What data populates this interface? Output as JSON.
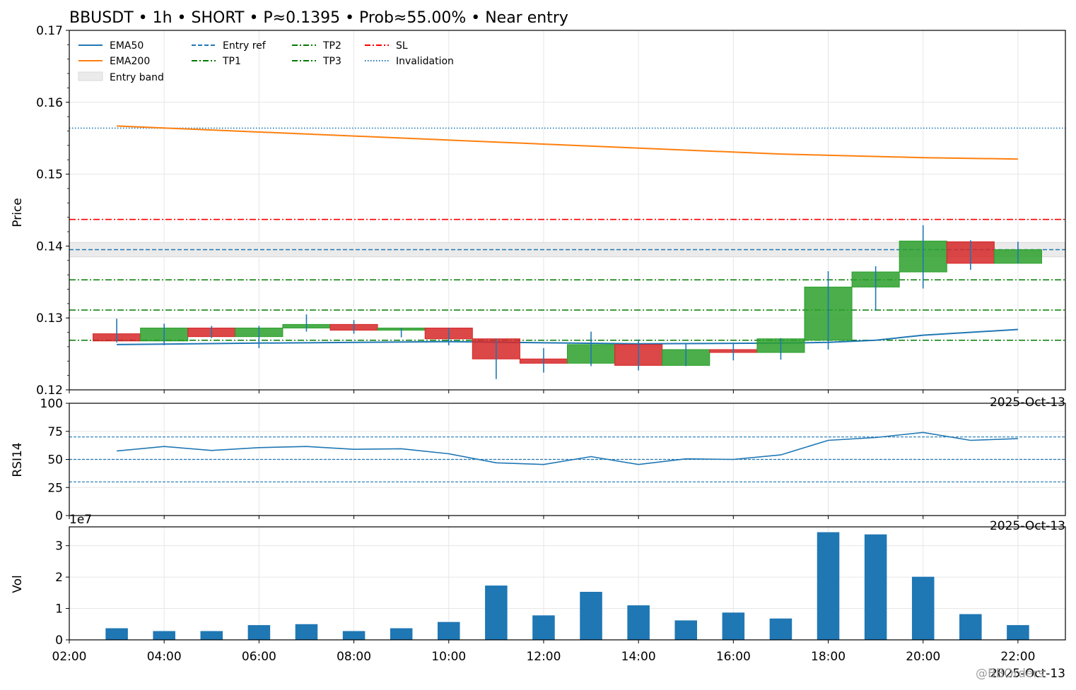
{
  "chart_data": {
    "title": "BBUSDT • 1h • SHORT • P≈0.1395 • Prob≈55.00% • Near entry",
    "type": "candlestick",
    "x_ticks": [
      "02:00",
      "04:00",
      "06:00",
      "08:00",
      "10:00",
      "12:00",
      "14:00",
      "16:00",
      "18:00",
      "20:00",
      "22:00"
    ],
    "date_label": "2025-Oct-13",
    "price_panel": {
      "ylabel": "Price",
      "ylim": [
        0.12,
        0.17
      ],
      "yticks": [
        "0.12",
        "0.13",
        "0.14",
        "0.15",
        "0.16",
        "0.17"
      ],
      "candles": [
        {
          "t": "03:00",
          "o": 0.1278,
          "h": 0.1299,
          "l": 0.1266,
          "c": 0.1268
        },
        {
          "t": "04:00",
          "o": 0.1268,
          "h": 0.1292,
          "l": 0.1262,
          "c": 0.1286
        },
        {
          "t": "05:00",
          "o": 0.1286,
          "h": 0.1289,
          "l": 0.1272,
          "c": 0.1274
        },
        {
          "t": "06:00",
          "o": 0.1274,
          "h": 0.1289,
          "l": 0.1258,
          "c": 0.1286
        },
        {
          "t": "07:00",
          "o": 0.1286,
          "h": 0.1305,
          "l": 0.1281,
          "c": 0.1291
        },
        {
          "t": "08:00",
          "o": 0.1291,
          "h": 0.1297,
          "l": 0.1278,
          "c": 0.1283
        },
        {
          "t": "09:00",
          "o": 0.1283,
          "h": 0.1286,
          "l": 0.1273,
          "c": 0.1286
        },
        {
          "t": "10:00",
          "o": 0.1286,
          "h": 0.1286,
          "l": 0.1262,
          "c": 0.1271
        },
        {
          "t": "11:00",
          "o": 0.1271,
          "h": 0.1271,
          "l": 0.1215,
          "c": 0.1243
        },
        {
          "t": "12:00",
          "o": 0.1243,
          "h": 0.1258,
          "l": 0.1224,
          "c": 0.1237
        },
        {
          "t": "13:00",
          "o": 0.1237,
          "h": 0.1281,
          "l": 0.1233,
          "c": 0.1263
        },
        {
          "t": "14:00",
          "o": 0.1263,
          "h": 0.127,
          "l": 0.1227,
          "c": 0.1234
        },
        {
          "t": "15:00",
          "o": 0.1234,
          "h": 0.1264,
          "l": 0.1233,
          "c": 0.1256
        },
        {
          "t": "16:00",
          "o": 0.1256,
          "h": 0.1264,
          "l": 0.1241,
          "c": 0.1252
        },
        {
          "t": "17:00",
          "o": 0.1252,
          "h": 0.1272,
          "l": 0.1242,
          "c": 0.1271
        },
        {
          "t": "18:00",
          "o": 0.1269,
          "h": 0.1365,
          "l": 0.1256,
          "c": 0.1343
        },
        {
          "t": "19:00",
          "o": 0.1343,
          "h": 0.1372,
          "l": 0.131,
          "c": 0.1364
        },
        {
          "t": "20:00",
          "o": 0.1364,
          "h": 0.1429,
          "l": 0.1341,
          "c": 0.1407
        },
        {
          "t": "21:00",
          "o": 0.1406,
          "h": 0.1408,
          "l": 0.1367,
          "c": 0.1376
        },
        {
          "t": "22:00",
          "o": 0.1376,
          "h": 0.1406,
          "l": 0.1376,
          "c": 0.1395
        }
      ],
      "ema50": {
        "name": "EMA50",
        "points": [
          [
            "03:00",
            0.1263
          ],
          [
            "06:00",
            0.1265
          ],
          [
            "10:00",
            0.1267
          ],
          [
            "14:00",
            0.1264
          ],
          [
            "17:00",
            0.1265
          ],
          [
            "18:00",
            0.1266
          ],
          [
            "19:00",
            0.1269
          ],
          [
            "20:00",
            0.1276
          ],
          [
            "22:00",
            0.1284
          ]
        ]
      },
      "ema200": {
        "name": "EMA200",
        "points": [
          [
            "03:00",
            0.1567
          ],
          [
            "08:00",
            0.1553
          ],
          [
            "13:00",
            0.1539
          ],
          [
            "17:00",
            0.1528
          ],
          [
            "20:00",
            0.1523
          ],
          [
            "22:00",
            0.1521
          ]
        ]
      },
      "levels": {
        "entry_ref": {
          "name": "Entry ref",
          "value": 0.1395
        },
        "entry_band": {
          "name": "Entry band",
          "low": 0.1385,
          "high": 0.1405
        },
        "tp1": {
          "name": "TP1",
          "value": 0.1311
        },
        "tp2": {
          "name": "TP2",
          "value": 0.1353
        },
        "tp3": {
          "name": "TP3",
          "value": 0.1269
        },
        "sl": {
          "name": "SL",
          "value": 0.1437
        },
        "invalidation": {
          "name": "Invalidation",
          "value": 0.1564
        }
      },
      "legend_position": "top-left"
    },
    "rsi_panel": {
      "ylabel": "RSI14",
      "ylim": [
        0,
        100
      ],
      "yticks": [
        "0",
        "25",
        "50",
        "75",
        "100"
      ],
      "ref_lines": [
        30,
        50,
        70
      ],
      "values": [
        57.5,
        61.5,
        58,
        60.5,
        61.5,
        59,
        59.5,
        55,
        47,
        45.5,
        52.5,
        45.5,
        50.5,
        50,
        54,
        67,
        69.5,
        74,
        67,
        68.5
      ]
    },
    "volume_panel": {
      "ylabel": "Vol",
      "offset_label": "1e7",
      "ylim": [
        0,
        3.6
      ],
      "yticks": [
        "0",
        "1",
        "2",
        "3"
      ],
      "values": [
        0.37,
        0.28,
        0.28,
        0.47,
        0.5,
        0.28,
        0.37,
        0.57,
        1.73,
        0.78,
        1.53,
        1.1,
        0.62,
        0.87,
        0.68,
        3.43,
        3.36,
        2.01,
        0.82,
        0.47
      ]
    },
    "colors": {
      "up": "#2ca02c",
      "down": "#d62728",
      "ema50": "#1f77b4",
      "ema200": "#ff7f0e",
      "entry": "#1f77b4",
      "tp": "#007a00",
      "sl": "#ff0000",
      "invalidation": "#1f77b4",
      "wick": "#1f77b4",
      "volume": "#1f77b4",
      "band": "#d9d9d9"
    }
  },
  "watermark": "@BBOrders"
}
